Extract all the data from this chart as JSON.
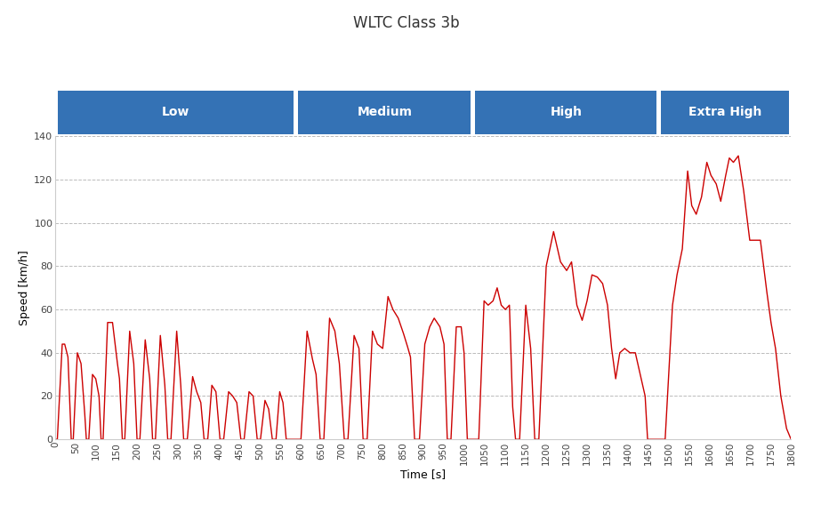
{
  "title": "WLTC Class 3b",
  "xlabel": "Time [s]",
  "ylabel": "Speed [km/h]",
  "ylim": [
    0,
    140
  ],
  "xlim": [
    0,
    1800
  ],
  "line_color": "#cc0000",
  "line_width": 1.0,
  "background_color": "#ffffff",
  "grid_color": "#aaaaaa",
  "phase_color": "#3472b5",
  "phases": [
    {
      "label": "Low",
      "start": 0,
      "end": 589
    },
    {
      "label": "Medium",
      "start": 589,
      "end": 1022
    },
    {
      "label": "High",
      "start": 1022,
      "end": 1477
    },
    {
      "label": "Extra High",
      "start": 1477,
      "end": 1800
    }
  ],
  "xticks": [
    0,
    50,
    100,
    150,
    200,
    250,
    300,
    350,
    400,
    450,
    500,
    550,
    600,
    650,
    700,
    750,
    800,
    850,
    900,
    950,
    1000,
    1050,
    1100,
    1150,
    1200,
    1250,
    1300,
    1350,
    1400,
    1450,
    1500,
    1550,
    1600,
    1650,
    1700,
    1750,
    1800
  ],
  "yticks": [
    0,
    20,
    40,
    60,
    80,
    100,
    120,
    140
  ],
  "title_fontsize": 12,
  "axis_label_fontsize": 9,
  "tick_fontsize": 7.5,
  "phase_label_fontsize": 10
}
